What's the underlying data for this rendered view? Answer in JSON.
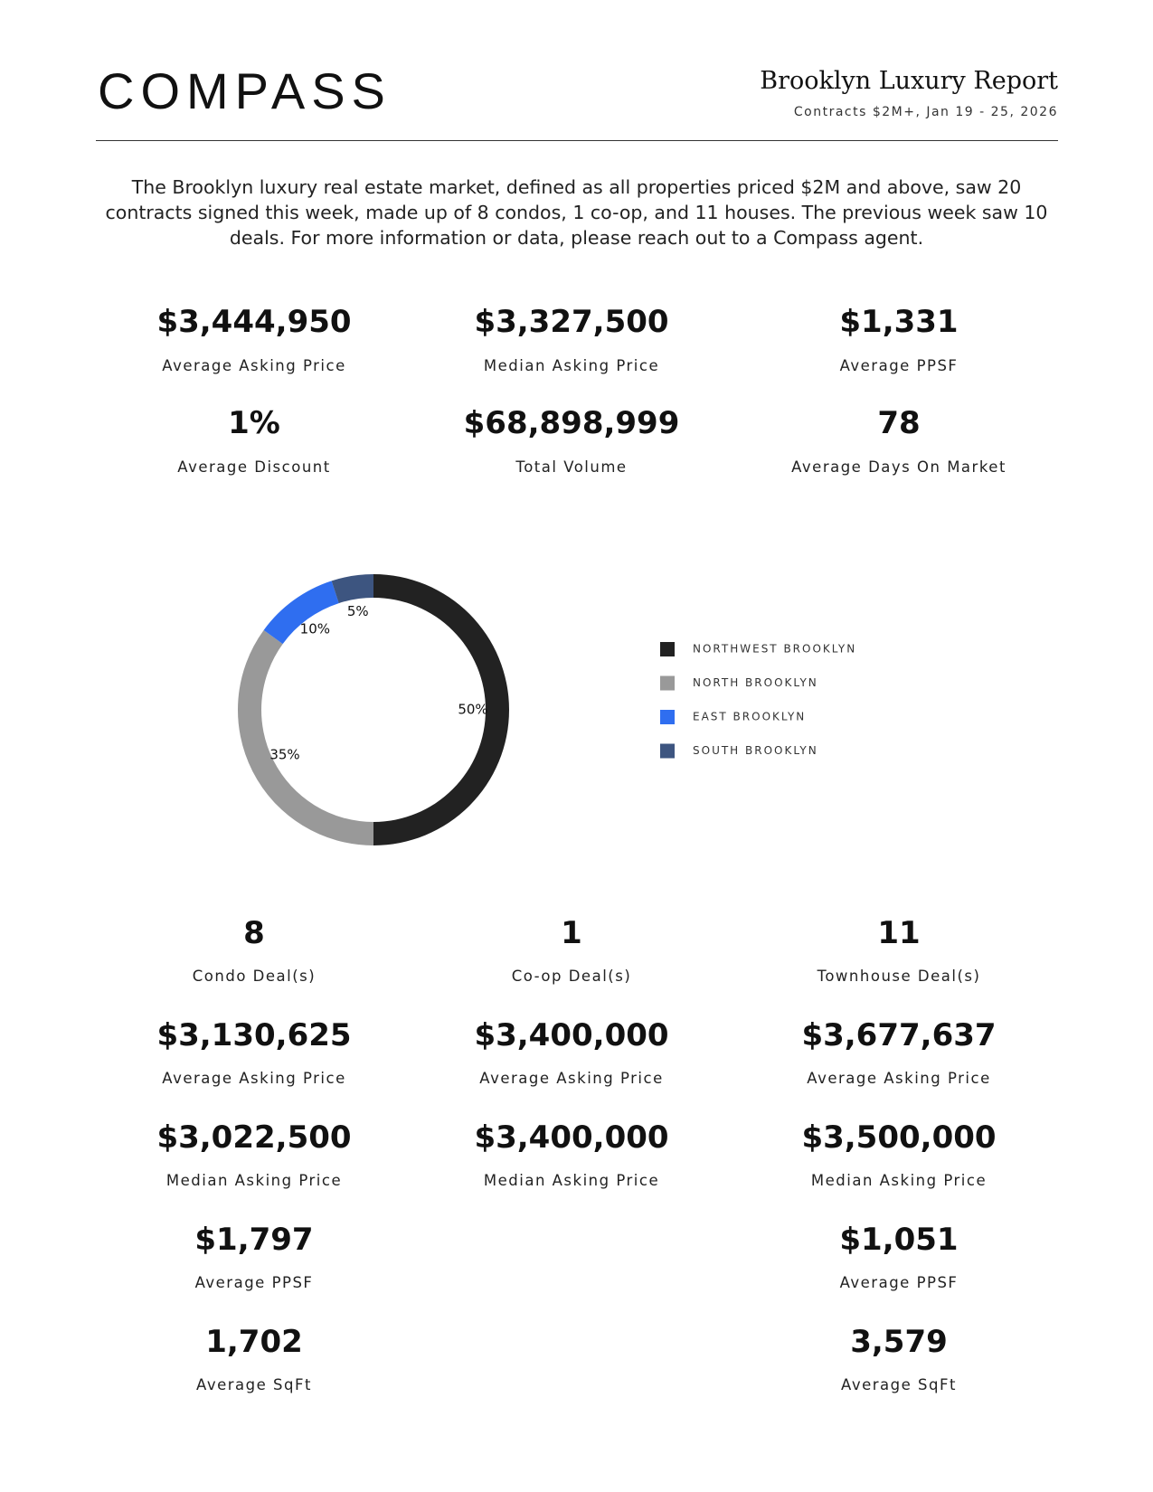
{
  "header": {
    "logo": "COMPASS",
    "title": "Brooklyn Luxury Report",
    "subtitle": "Contracts $2M+, Jan 19 - 25, 2026"
  },
  "intro": "The Brooklyn luxury real estate market, defined as all properties priced $2M and above, saw 20 contracts signed this week, made up of 8 condos, 1 co-op, and 11 houses. The previous week saw 10 deals. For more information or data, please reach out to a Compass agent.",
  "stats": [
    {
      "value": "$3,444,950",
      "label": "Average Asking Price"
    },
    {
      "value": "$3,327,500",
      "label": "Median Asking Price"
    },
    {
      "value": "$1,331",
      "label": "Average PPSF"
    },
    {
      "value": "1%",
      "label": "Average Discount"
    },
    {
      "value": "$68,898,999",
      "label": "Total Volume"
    },
    {
      "value": "78",
      "label": "Average Days On Market"
    }
  ],
  "chart_data": {
    "type": "pie",
    "categories": [
      "NORTHWEST BROOKLYN",
      "NORTH BROOKLYN",
      "EAST BROOKLYN",
      "SOUTH BROOKLYN"
    ],
    "values": [
      50,
      35,
      10,
      5
    ],
    "value_labels": [
      "50%",
      "35%",
      "10%",
      "5%"
    ],
    "colors": [
      "#222222",
      "#999999",
      "#2f6ef0",
      "#3d5580"
    ],
    "donut": true,
    "legend": "right"
  },
  "property_types": [
    {
      "items": [
        {
          "value": "8",
          "label": "Condo Deal(s)"
        },
        {
          "value": "$3,130,625",
          "label": "Average Asking Price"
        },
        {
          "value": "$3,022,500",
          "label": "Median Asking Price"
        },
        {
          "value": "$1,797",
          "label": "Average PPSF"
        },
        {
          "value": "1,702",
          "label": "Average SqFt"
        }
      ]
    },
    {
      "items": [
        {
          "value": "1",
          "label": "Co-op Deal(s)"
        },
        {
          "value": "$3,400,000",
          "label": "Average Asking Price"
        },
        {
          "value": "$3,400,000",
          "label": "Median Asking Price"
        }
      ]
    },
    {
      "items": [
        {
          "value": "11",
          "label": "Townhouse Deal(s)"
        },
        {
          "value": "$3,677,637",
          "label": "Average Asking Price"
        },
        {
          "value": "$3,500,000",
          "label": "Median Asking Price"
        },
        {
          "value": "$1,051",
          "label": "Average PPSF"
        },
        {
          "value": "3,579",
          "label": "Average SqFt"
        }
      ]
    }
  ]
}
